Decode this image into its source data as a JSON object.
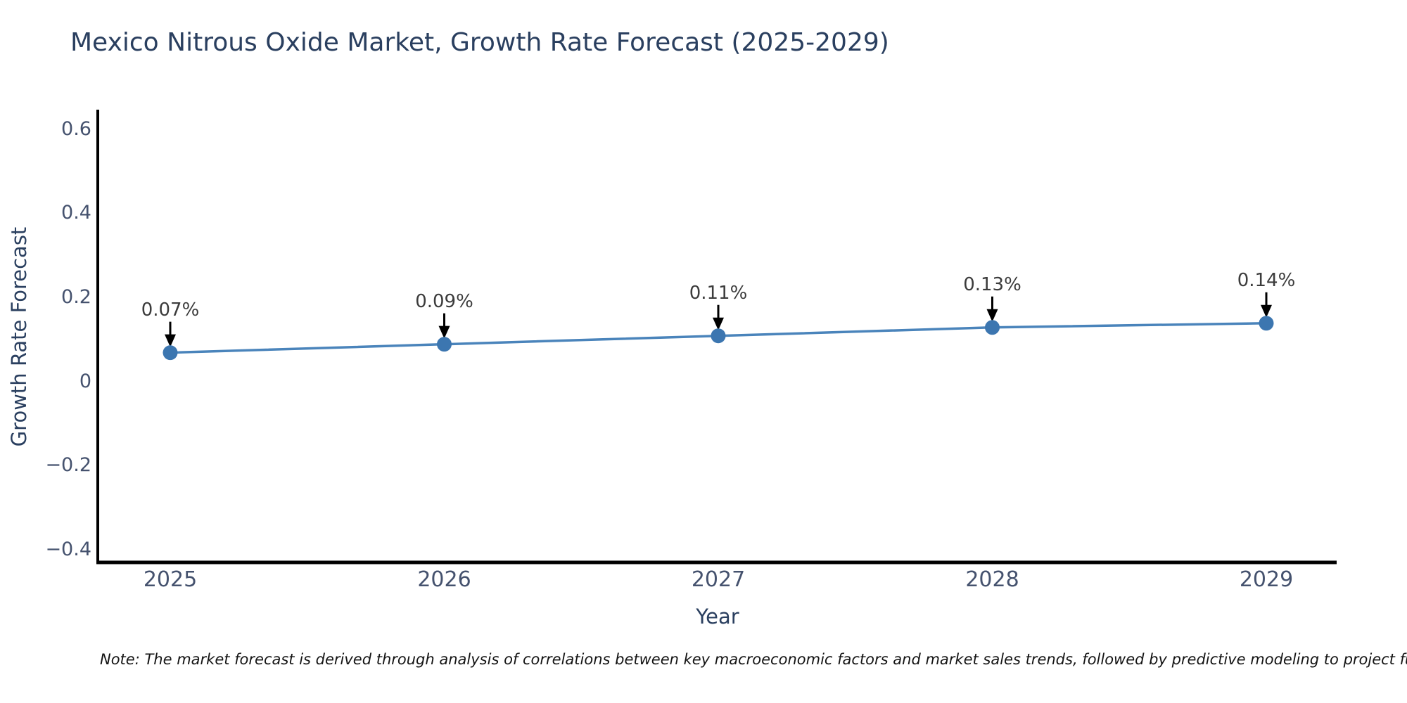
{
  "title": "Mexico Nitrous Oxide Market, Growth Rate Forecast (2025-2029)",
  "chart_data": {
    "type": "line",
    "x": [
      2025,
      2026,
      2027,
      2028,
      2029
    ],
    "series": [
      {
        "name": "Growth Rate Forecast",
        "values": [
          0.07,
          0.09,
          0.11,
          0.13,
          0.14
        ]
      }
    ],
    "point_labels": [
      "0.07%",
      "0.09%",
      "0.11%",
      "0.13%",
      "0.14%"
    ],
    "title": "Mexico Nitrous Oxide Market, Growth Rate Forecast (2025-2029)",
    "xlabel": "Year",
    "ylabel": "Growth Rate Forecast",
    "xtick_labels": [
      "2025",
      "2026",
      "2027",
      "2028",
      "2029"
    ],
    "ytick_values": [
      0.6,
      0.4,
      0.2,
      0,
      -0.2,
      -0.4
    ],
    "ytick_labels": [
      "0.6",
      "0.4",
      "0.2",
      "0",
      "−0.2",
      "−0.4"
    ],
    "ylim": [
      -0.43,
      0.64
    ],
    "grid": false,
    "legend": "none",
    "annotations": "down arrows from each percentage label to its data point",
    "line_color": "#4a84bb",
    "marker_color": "#3c76b0",
    "arrow_color": "#000000",
    "axis_line_color": "#000000"
  },
  "note": "Note: The market forecast is derived through analysis of correlations between key macroeconomic factors and market sales trends, followed by predictive modeling to project future sa",
  "colors": {
    "background": "#ffffff",
    "title_text": "#2a3f5f",
    "tick_text": "#45526e",
    "data_label_text": "#3c3c3c",
    "note_text": "#141414"
  }
}
